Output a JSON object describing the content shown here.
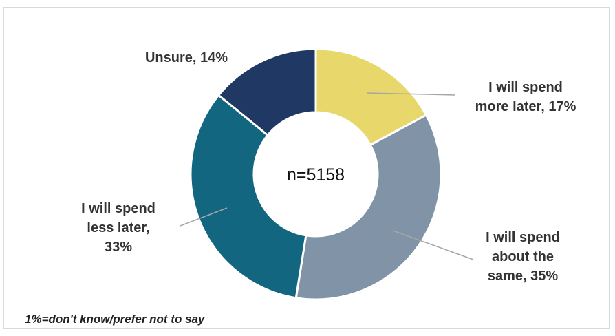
{
  "chart_data": {
    "type": "pie",
    "donut": true,
    "center_label": "n=5158",
    "slices": [
      {
        "label_lines": [
          "I will spend",
          "more later, 17%"
        ],
        "value": 17,
        "color": "#E8D76B"
      },
      {
        "label_lines": [
          "I will spend",
          "about the",
          "same, 35%"
        ],
        "value": 35,
        "color": "#8193A7"
      },
      {
        "label_lines": [
          "I will spend",
          "less later,",
          "33%"
        ],
        "value": 33,
        "color": "#136680"
      },
      {
        "label_lines": [
          "Unsure, 14%"
        ],
        "value": 14,
        "color": "#1F3864"
      }
    ],
    "footnote": "1%=don't know/prefer not to say"
  }
}
